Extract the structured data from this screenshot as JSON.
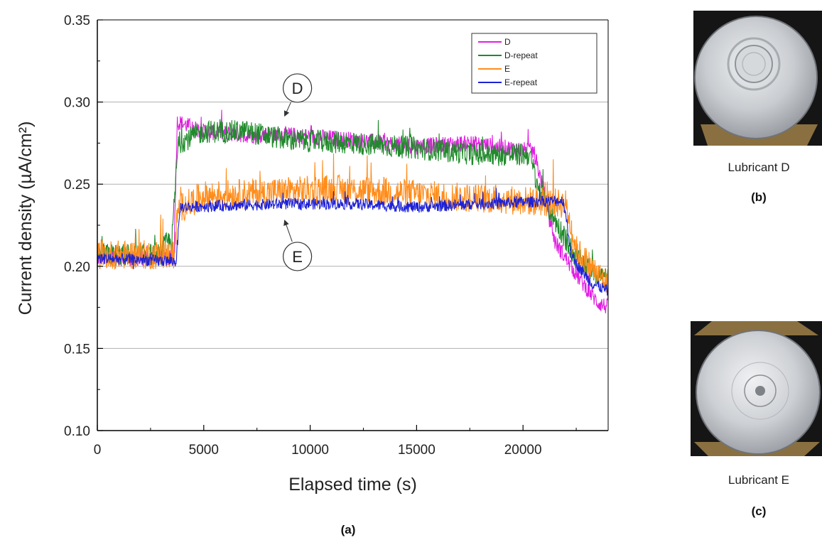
{
  "chart_data": {
    "type": "line",
    "xlabel": "Elapsed time (s)",
    "ylabel": "Current density (µA/cm²)",
    "xlim": [
      0,
      24000
    ],
    "ylim": [
      0.1,
      0.35
    ],
    "xticks": [
      0,
      5000,
      10000,
      15000,
      20000
    ],
    "xtick_labels": [
      "0",
      "5000",
      "10000",
      "15000",
      "20000"
    ],
    "yticks": [
      0.1,
      0.15,
      0.2,
      0.25,
      0.3,
      0.35
    ],
    "ytick_labels": [
      "0.10",
      "0.15",
      "0.20",
      "0.25",
      "0.30",
      "0.35"
    ],
    "grid": "horizontal",
    "legend_position": "top-right",
    "series": [
      {
        "name": "D",
        "color": "#e21ee2",
        "noise": 0.005,
        "points": [
          [
            0,
            0.205
          ],
          [
            3600,
            0.205
          ],
          [
            3750,
            0.288
          ],
          [
            5000,
            0.282
          ],
          [
            7000,
            0.28
          ],
          [
            9000,
            0.28
          ],
          [
            12000,
            0.277
          ],
          [
            15000,
            0.273
          ],
          [
            17500,
            0.275
          ],
          [
            20500,
            0.27
          ],
          [
            21000,
            0.245
          ],
          [
            21500,
            0.215
          ],
          [
            22500,
            0.195
          ],
          [
            23500,
            0.178
          ],
          [
            24000,
            0.175
          ]
        ]
      },
      {
        "name": "D-repeat",
        "color": "#1f8a2a",
        "noise": 0.007,
        "points": [
          [
            0,
            0.207
          ],
          [
            2900,
            0.207
          ],
          [
            3300,
            0.215
          ],
          [
            3500,
            0.215
          ],
          [
            3800,
            0.275
          ],
          [
            5000,
            0.282
          ],
          [
            7000,
            0.282
          ],
          [
            9000,
            0.277
          ],
          [
            12000,
            0.275
          ],
          [
            15000,
            0.272
          ],
          [
            18000,
            0.268
          ],
          [
            20300,
            0.268
          ],
          [
            20800,
            0.245
          ],
          [
            21500,
            0.228
          ],
          [
            22500,
            0.205
          ],
          [
            23500,
            0.195
          ],
          [
            24000,
            0.192
          ]
        ]
      },
      {
        "name": "E",
        "color": "#ff8c1a",
        "noise": 0.009,
        "points": [
          [
            0,
            0.207
          ],
          [
            3600,
            0.207
          ],
          [
            3800,
            0.235
          ],
          [
            5000,
            0.243
          ],
          [
            8000,
            0.245
          ],
          [
            11000,
            0.247
          ],
          [
            14000,
            0.245
          ],
          [
            17000,
            0.242
          ],
          [
            20000,
            0.24
          ],
          [
            22000,
            0.238
          ],
          [
            22500,
            0.21
          ],
          [
            23500,
            0.195
          ],
          [
            24000,
            0.19
          ]
        ]
      },
      {
        "name": "E-repeat",
        "color": "#1e22d6",
        "noise": 0.0035,
        "points": [
          [
            0,
            0.205
          ],
          [
            3700,
            0.203
          ],
          [
            3900,
            0.236
          ],
          [
            6000,
            0.237
          ],
          [
            9000,
            0.238
          ],
          [
            12000,
            0.238
          ],
          [
            15000,
            0.236
          ],
          [
            18000,
            0.238
          ],
          [
            21900,
            0.24
          ],
          [
            22300,
            0.205
          ],
          [
            23200,
            0.19
          ],
          [
            24000,
            0.185
          ]
        ]
      }
    ],
    "annotations": [
      {
        "text": "D",
        "label_x": 9400,
        "label_y": 0.3085,
        "arrow_x": 8800,
        "arrow_y": 0.2915
      },
      {
        "text": "E",
        "label_x": 9400,
        "label_y": 0.206,
        "arrow_x": 8800,
        "arrow_y": 0.228
      }
    ]
  },
  "panels": {
    "a_label": "(a)",
    "b_caption": "Lubricant D",
    "b_label": "(b)",
    "c_caption": "Lubricant E",
    "c_label": "(c)"
  }
}
